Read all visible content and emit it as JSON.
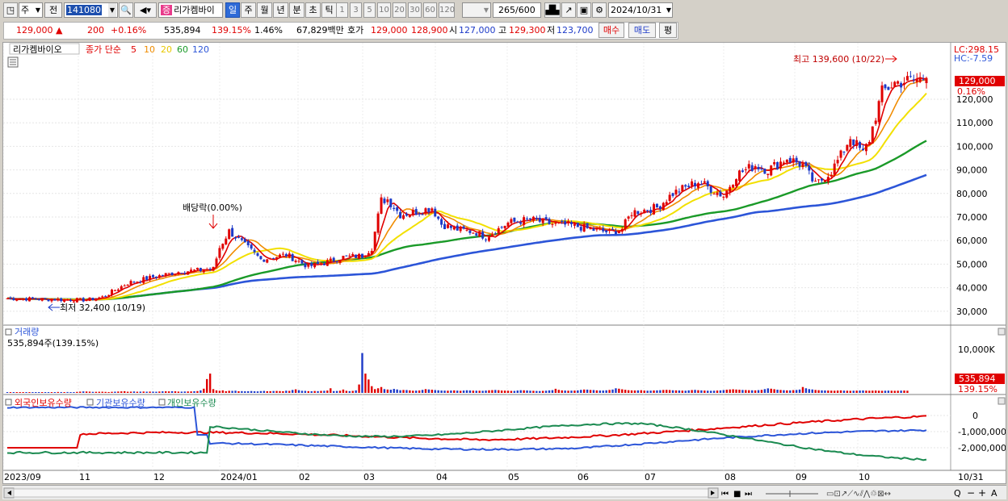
{
  "toolbar": {
    "market": "주",
    "price_mode": "전",
    "code": "141080",
    "name": "리가켐바이",
    "periods": [
      "일",
      "주",
      "월",
      "년",
      "분",
      "초",
      "틱"
    ],
    "period_selected": "일",
    "intervals": [
      "1",
      "3",
      "5",
      "10",
      "20",
      "30",
      "60",
      "120"
    ],
    "count": "265",
    "count_max": "/600",
    "date": "2024/10/31"
  },
  "quote": {
    "price": "129,000",
    "arrow": "▲",
    "change": "200",
    "change_pct": "+0.16%",
    "volume": "535,894",
    "volume_ratio": "139.15%",
    "turnover": "1.46%",
    "amount": "67,829백만",
    "bid_label": "호가",
    "ask": "129,000",
    "bid": "128,900",
    "open_label": "시",
    "open": "127,000",
    "high_label": "고",
    "high": "129,300",
    "low_label": "저",
    "low": "123,700",
    "buy": "매수",
    "sell": "매도",
    "eval": "평"
  },
  "price_panel": {
    "name": "리가켐바이오",
    "ma_label": "종가 단순",
    "ma_periods": [
      "5",
      "10",
      "20",
      "60",
      "120"
    ],
    "ma_colors": [
      "#e00000",
      "#f08c00",
      "#f2e000",
      "#1a9a28",
      "#2c55d8"
    ],
    "lc": "LC:298.15",
    "hc": "HC:-7.59",
    "high_note": "최고 139,600 (10/22)",
    "low_note": "최저 32,400 (10/19)",
    "dividend_note": "배당락(0.00%)",
    "last_price": "129,000",
    "last_pct": "0.16%"
  },
  "volume_panel": {
    "title": "거래량",
    "info": "535,894주(139.15%)",
    "last_vol": "535,894",
    "last_pct": "139.15%",
    "axis_label": "10,000K"
  },
  "holdings_panel": {
    "series": [
      {
        "name": "외국인보유수량",
        "color": "#e00000"
      },
      {
        "name": "기관보유수량",
        "color": "#2c55d8"
      },
      {
        "name": "개인보유수량",
        "color": "#1a8a50"
      }
    ]
  },
  "x_labels": [
    "2023/09",
    "11",
    "12",
    "2024/01",
    "02",
    "03",
    "04",
    "05",
    "06",
    "07",
    "08",
    "09",
    "10",
    "10/31"
  ],
  "chart_data": {
    "type": "candlestick",
    "y_ticks": [
      "120,000",
      "110,000",
      "100,000",
      "90,000",
      "80,000",
      "70,000",
      "60,000",
      "50,000",
      "40,000",
      "30,000"
    ],
    "ylim": [
      25000,
      143000
    ],
    "holdings_ticks": [
      "0",
      "-1,000,000",
      "-2,000,000"
    ],
    "close_anchors": [
      [
        0,
        35500
      ],
      [
        14,
        35000
      ],
      [
        25,
        34800
      ],
      [
        30,
        36000
      ],
      [
        38,
        42000
      ],
      [
        46,
        44500
      ],
      [
        55,
        47000
      ],
      [
        62,
        47500
      ],
      [
        65,
        48000
      ],
      [
        67,
        57000
      ],
      [
        70,
        64000
      ],
      [
        75,
        58000
      ],
      [
        80,
        52000
      ],
      [
        88,
        54000
      ],
      [
        95,
        49000
      ],
      [
        100,
        50500
      ],
      [
        106,
        53000
      ],
      [
        112,
        53500
      ],
      [
        115,
        57000
      ],
      [
        118,
        77000
      ],
      [
        120,
        77500
      ],
      [
        124,
        71000
      ],
      [
        130,
        72500
      ],
      [
        134,
        74000
      ],
      [
        137,
        67000
      ],
      [
        141,
        65000
      ],
      [
        148,
        63500
      ],
      [
        151,
        61500
      ],
      [
        158,
        67500
      ],
      [
        165,
        69000
      ],
      [
        172,
        67000
      ],
      [
        178,
        66500
      ],
      [
        185,
        64500
      ],
      [
        190,
        63500
      ],
      [
        194,
        65000
      ],
      [
        197,
        72000
      ],
      [
        205,
        74000
      ],
      [
        210,
        80000
      ],
      [
        218,
        85000
      ],
      [
        222,
        82000
      ],
      [
        226,
        79000
      ],
      [
        230,
        88000
      ],
      [
        236,
        92000
      ],
      [
        240,
        90000
      ],
      [
        246,
        95000
      ],
      [
        251,
        92000
      ],
      [
        255,
        83500
      ],
      [
        260,
        89500
      ],
      [
        263,
        96000
      ],
      [
        266,
        104000
      ],
      [
        270,
        97000
      ],
      [
        272,
        103000
      ],
      [
        276,
        123000
      ],
      [
        280,
        127000
      ],
      [
        285,
        128000
      ],
      [
        290,
        129000
      ]
    ],
    "volume_k": [
      120,
      100,
      140,
      110,
      90,
      130,
      100,
      120,
      110,
      150,
      140,
      120,
      130,
      160,
      180,
      170,
      220,
      200,
      190,
      210,
      180,
      160,
      240,
      300,
      350,
      330,
      300,
      250,
      260,
      270,
      280,
      240,
      200,
      260,
      290,
      320,
      360,
      400,
      280,
      300,
      340,
      280,
      300,
      320,
      290,
      310,
      300,
      280,
      330,
      370,
      380,
      360,
      400,
      380,
      310,
      300,
      330,
      340,
      350,
      400,
      430,
      600,
      1000,
      3300,
      4600,
      900,
      600,
      500,
      600,
      400,
      500,
      480,
      520,
      400,
      420,
      380,
      400,
      440,
      380,
      360,
      430,
      470,
      400,
      410,
      450,
      460,
      430,
      400,
      520,
      480,
      700,
      850,
      650,
      500,
      480,
      420,
      400,
      450,
      420,
      480,
      500,
      560,
      1100,
      430,
      460,
      520,
      800,
      500,
      420,
      480,
      600,
      2000,
      9500,
      4600,
      3200,
      1600,
      900,
      1100,
      1400,
      900,
      800,
      760,
      950,
      820,
      640,
      700,
      680,
      600,
      520,
      540,
      580,
      720,
      900,
      820,
      760,
      680,
      620,
      560,
      540,
      520,
      560,
      600,
      540,
      500,
      560,
      620,
      580,
      540,
      520,
      520,
      500,
      560,
      620,
      660,
      700,
      640,
      560,
      540,
      520,
      480,
      470,
      560,
      640,
      620,
      580,
      520,
      500,
      460,
      440,
      480,
      520,
      600,
      660,
      980,
      720,
      600,
      560,
      520,
      540,
      560,
      600,
      720,
      800,
      780,
      700,
      680,
      600,
      560,
      560,
      620,
      700,
      800,
      1100,
      1000,
      860,
      740,
      640,
      600,
      580,
      600,
      640,
      560,
      520,
      540,
      580,
      600,
      640,
      700,
      720,
      680,
      620,
      600,
      580,
      540,
      520,
      600,
      680,
      720,
      640,
      600,
      560,
      520,
      500,
      520,
      560,
      600,
      680,
      760,
      820,
      860,
      800,
      760,
      700,
      680,
      640,
      620,
      600,
      660,
      720,
      900,
      1080,
      1000,
      880,
      760,
      700,
      640,
      600,
      600,
      660,
      700,
      800,
      1400,
      1100,
      900,
      820,
      700,
      640,
      600,
      580,
      560,
      540,
      520,
      560,
      600,
      540,
      520,
      500,
      520,
      540,
      560,
      580,
      540,
      520,
      540,
      560,
      520,
      500,
      520,
      540,
      520,
      500,
      520,
      540,
      560,
      520
    ]
  }
}
